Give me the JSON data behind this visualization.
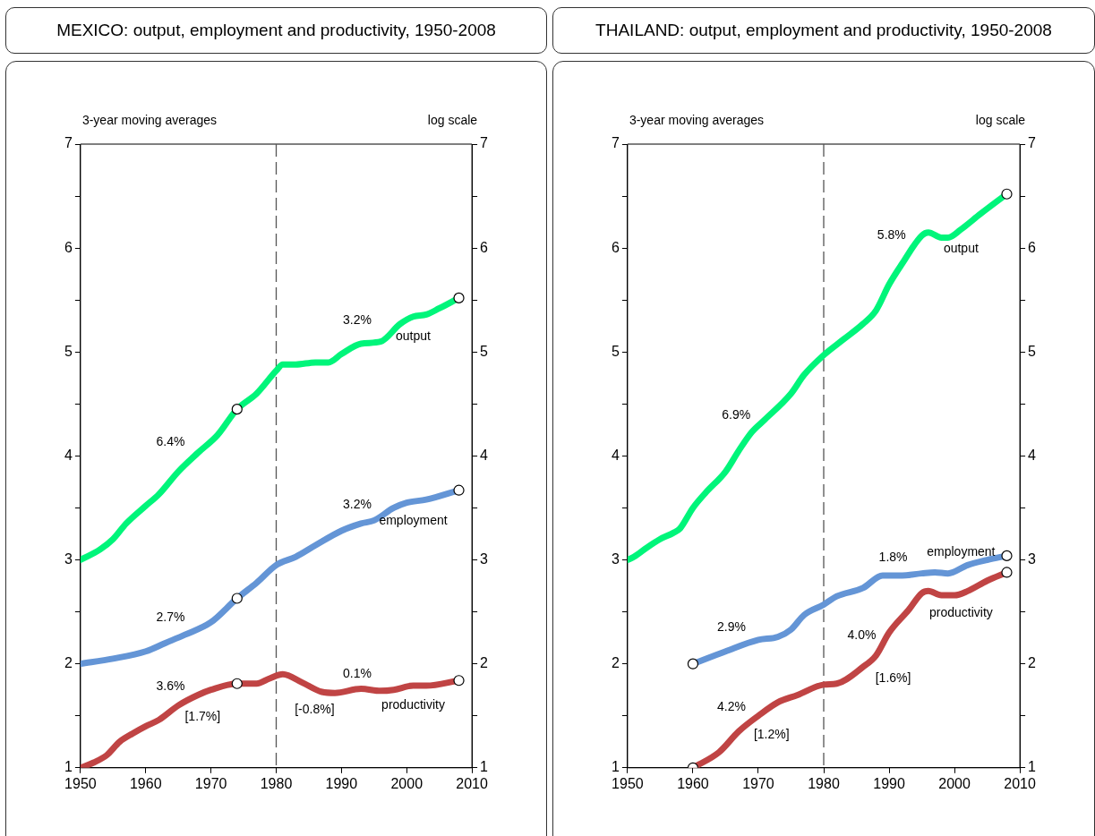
{
  "chart_data": [
    {
      "type": "line",
      "title": "MEXICO: output, employment and productivity, 1950-2008",
      "xlim": [
        1950,
        2010
      ],
      "xticks": [
        1950,
        1960,
        1970,
        1980,
        1990,
        2000,
        2010
      ],
      "ylim": [
        1,
        7
      ],
      "yticks": [
        1,
        {
          "value": 1.5,
          "label": null
        },
        2,
        {
          "value": 2.5,
          "label": null
        },
        3,
        {
          "value": 3.5,
          "label": null
        },
        4,
        {
          "value": 4.5,
          "label": null
        },
        5,
        {
          "value": 5.5,
          "label": null
        },
        6,
        {
          "value": 6.5,
          "label": null
        },
        7
      ],
      "y2lim": [
        1,
        7
      ],
      "y2ticks": [
        1,
        {
          "value": 1.5,
          "label": null
        },
        2,
        {
          "value": 2.5,
          "label": null
        },
        3,
        {
          "value": 3.5,
          "label": null
        },
        4,
        {
          "value": 4.5,
          "label": null
        },
        5,
        {
          "value": 5.5,
          "label": null
        },
        6,
        {
          "value": 6.5,
          "label": null
        },
        7
      ],
      "grid": false,
      "legend": false,
      "series": [
        {
          "name": "output",
          "color": "#00f57a",
          "x": [
            1950,
            1953,
            1955,
            1957,
            1960,
            1962,
            1965,
            1968,
            1971,
            1974,
            1977,
            1980,
            1981,
            1983,
            1986,
            1988,
            1990,
            1993,
            1996,
            1999,
            2001,
            2003,
            2005,
            2008
          ],
          "values": [
            3.0,
            3.1,
            3.2,
            3.35,
            3.52,
            3.63,
            3.85,
            4.03,
            4.2,
            4.45,
            4.6,
            4.82,
            4.88,
            4.88,
            4.9,
            4.9,
            4.98,
            5.08,
            5.1,
            5.27,
            5.34,
            5.36,
            5.42,
            5.52
          ]
        },
        {
          "name": "employment",
          "color": "#6495d6",
          "x": [
            1950,
            1955,
            1960,
            1963,
            1966,
            1970,
            1974,
            1977,
            1980,
            1983,
            1986,
            1990,
            1993,
            1995,
            1998,
            2000,
            2003,
            2008
          ],
          "values": [
            2.0,
            2.05,
            2.12,
            2.2,
            2.28,
            2.4,
            2.63,
            2.78,
            2.95,
            3.03,
            3.14,
            3.28,
            3.35,
            3.38,
            3.5,
            3.55,
            3.58,
            3.67
          ]
        },
        {
          "name": "productivity",
          "color": "#c04444",
          "x": [
            1950,
            1952,
            1954,
            1956,
            1958,
            1960,
            1962,
            1965,
            1968,
            1970,
            1974,
            1977,
            1979,
            1981,
            1984,
            1987,
            1989,
            1993,
            1996,
            1998,
            2001,
            2003,
            2008
          ],
          "values": [
            1.0,
            1.05,
            1.12,
            1.25,
            1.33,
            1.4,
            1.46,
            1.6,
            1.7,
            1.75,
            1.81,
            1.81,
            1.86,
            1.9,
            1.82,
            1.73,
            1.72,
            1.76,
            1.74,
            1.75,
            1.79,
            1.79,
            1.84
          ]
        },
        {
          "type": "scatter",
          "color": "#ffffff",
          "x": [
            1974,
            2008,
            1974,
            2008,
            1974,
            2008
          ],
          "values": [
            4.45,
            5.52,
            2.63,
            3.67,
            1.81,
            1.84
          ]
        }
      ],
      "ref_lines": [
        {
          "axis": "x",
          "value": 1980,
          "color": "#555555",
          "line_style": "dashed"
        }
      ],
      "annotations": [
        "3-year moving averages",
        "log scale",
        "6.4%",
        "3.2%",
        "2.7%",
        "3.2%",
        "3.6%",
        "[1.7%]",
        "[-0.8%]",
        "0.1%"
      ]
    },
    {
      "type": "line",
      "title": "THAILAND: output, employment and productivity, 1950-2008",
      "xlim": [
        1950,
        2010
      ],
      "xticks": [
        1950,
        1960,
        1970,
        1980,
        1990,
        2000,
        2010
      ],
      "ylim": [
        1,
        7
      ],
      "yticks": [
        1,
        {
          "value": 1.5,
          "label": null
        },
        2,
        {
          "value": 2.5,
          "label": null
        },
        3,
        {
          "value": 3.5,
          "label": null
        },
        4,
        {
          "value": 4.5,
          "label": null
        },
        5,
        {
          "value": 5.5,
          "label": null
        },
        6,
        {
          "value": 6.5,
          "label": null
        },
        7
      ],
      "y2lim": [
        1,
        7
      ],
      "y2ticks": [
        1,
        {
          "value": 1.5,
          "label": null
        },
        2,
        {
          "value": 2.5,
          "label": null
        },
        3,
        {
          "value": 3.5,
          "label": null
        },
        4,
        {
          "value": 4.5,
          "label": null
        },
        5,
        {
          "value": 5.5,
          "label": null
        },
        6,
        {
          "value": 6.5,
          "label": null
        },
        7
      ],
      "grid": false,
      "legend": false,
      "series": [
        {
          "name": "output",
          "color": "#00f57a",
          "x": [
            1950,
            1951,
            1953,
            1955,
            1957,
            1958,
            1960,
            1962,
            1965,
            1967,
            1969,
            1971,
            1975,
            1977,
            1980,
            1983,
            1986,
            1988,
            1990,
            1992,
            1995,
            1996,
            1998,
            1999,
            2001,
            2004,
            2008
          ],
          "values": [
            3.0,
            3.03,
            3.12,
            3.2,
            3.26,
            3.3,
            3.5,
            3.65,
            3.85,
            4.05,
            4.23,
            4.35,
            4.6,
            4.78,
            4.97,
            5.12,
            5.27,
            5.4,
            5.65,
            5.85,
            6.12,
            6.15,
            6.1,
            6.1,
            6.18,
            6.33,
            6.52
          ]
        },
        {
          "name": "employment",
          "color": "#6495d6",
          "x": [
            1960,
            1965,
            1970,
            1973,
            1975,
            1977,
            1980,
            1982,
            1986,
            1989,
            1992,
            1995,
            1997,
            1999,
            2002,
            2005,
            2008
          ],
          "values": [
            2.0,
            2.12,
            2.23,
            2.26,
            2.33,
            2.47,
            2.57,
            2.65,
            2.73,
            2.85,
            2.85,
            2.87,
            2.88,
            2.87,
            2.95,
            3.0,
            3.04
          ]
        },
        {
          "name": "productivity",
          "color": "#c04444",
          "x": [
            1960,
            1964,
            1967,
            1970,
            1973,
            1976,
            1980,
            1982,
            1986,
            1988,
            1990,
            1993,
            1995,
            1996,
            1998,
            2000,
            2002,
            2005,
            2008
          ],
          "values": [
            1.0,
            1.15,
            1.35,
            1.5,
            1.63,
            1.7,
            1.8,
            1.81,
            1.97,
            2.08,
            2.3,
            2.52,
            2.68,
            2.7,
            2.66,
            2.66,
            2.7,
            2.8,
            2.88
          ]
        },
        {
          "type": "scatter",
          "color": "#ffffff",
          "x": [
            2008,
            1960,
            2008,
            1960,
            2008
          ],
          "values": [
            6.52,
            2.0,
            3.04,
            1.0,
            2.88
          ]
        }
      ],
      "ref_lines": [
        {
          "axis": "x",
          "value": 1980,
          "color": "#555555",
          "line_style": "dashed"
        }
      ],
      "annotations": [
        "3-year moving averages",
        "log scale",
        "6.9%",
        "5.8%",
        "2.9%",
        "1.8%",
        "4.2%",
        "[1.2%]",
        "4.0%",
        "[1.6%]"
      ]
    }
  ]
}
